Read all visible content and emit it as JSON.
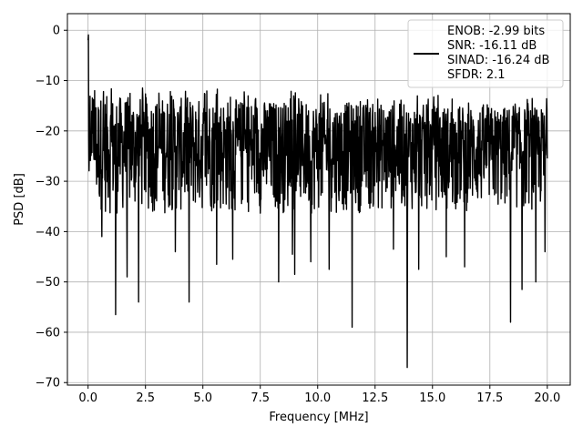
{
  "chart_data": {
    "type": "line",
    "xlabel": "Frequency [MHz]",
    "ylabel": "PSD [dB]",
    "xlim": [
      -0.9,
      21.0
    ],
    "ylim": [
      -70.5,
      3.3
    ],
    "xticks": [
      0.0,
      2.5,
      5.0,
      7.5,
      10.0,
      12.5,
      15.0,
      17.5,
      20.0
    ],
    "xtick_labels": [
      "0.0",
      "2.5",
      "5.0",
      "7.5",
      "10.0",
      "12.5",
      "15.0",
      "17.5",
      "20.0"
    ],
    "yticks": [
      0,
      -10,
      -20,
      -30,
      -40,
      -50,
      -60,
      -70
    ],
    "ytick_labels": [
      "0",
      "−10",
      "−20",
      "−30",
      "−40",
      "−50",
      "−60",
      "−70"
    ],
    "grid": true,
    "legend_position": "top-right",
    "series": [
      {
        "color": "#000000",
        "x_start": 0.0,
        "x_end": 20.0,
        "noise_floor_db": -27,
        "peak_db": 0.0,
        "notable_dips": [
          {
            "x": 0.6,
            "y": -41.0
          },
          {
            "x": 1.2,
            "y": -56.5
          },
          {
            "x": 1.7,
            "y": -49.0
          },
          {
            "x": 2.2,
            "y": -54.0
          },
          {
            "x": 3.8,
            "y": -44.0
          },
          {
            "x": 4.4,
            "y": -54.0
          },
          {
            "x": 5.6,
            "y": -46.5
          },
          {
            "x": 6.3,
            "y": -45.5
          },
          {
            "x": 8.3,
            "y": -50.0
          },
          {
            "x": 8.9,
            "y": -44.5
          },
          {
            "x": 9.0,
            "y": -48.5
          },
          {
            "x": 9.7,
            "y": -46.0
          },
          {
            "x": 10.5,
            "y": -47.5
          },
          {
            "x": 11.5,
            "y": -59.0
          },
          {
            "x": 13.3,
            "y": -43.5
          },
          {
            "x": 13.9,
            "y": -67.0
          },
          {
            "x": 14.4,
            "y": -47.5
          },
          {
            "x": 15.6,
            "y": -45.0
          },
          {
            "x": 16.4,
            "y": -47.0
          },
          {
            "x": 18.4,
            "y": -58.0
          },
          {
            "x": 18.9,
            "y": -51.5
          },
          {
            "x": 19.5,
            "y": -50.0
          },
          {
            "x": 19.9,
            "y": -44.0
          }
        ]
      }
    ],
    "legend": {
      "lines": [
        "ENOB: -2.99 bits",
        "SNR: -16.11 dB",
        "SINAD: -16.24 dB",
        "SFDR: 2.1"
      ]
    }
  }
}
